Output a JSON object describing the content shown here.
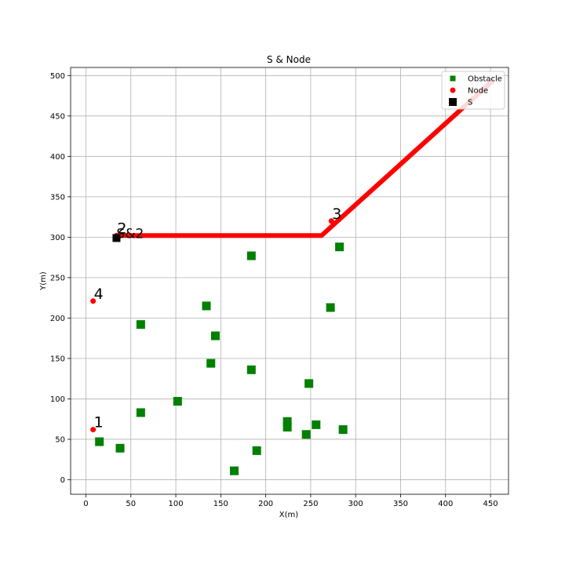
{
  "chart_data": {
    "type": "scatter",
    "title": "S & Node",
    "xlabel": "X(m)",
    "ylabel": "Y(m)",
    "xlim": [
      -17,
      470
    ],
    "ylim": [
      -18,
      510
    ],
    "xticks": [
      0,
      50,
      100,
      150,
      200,
      250,
      300,
      350,
      400,
      450
    ],
    "yticks": [
      0,
      50,
      100,
      150,
      200,
      250,
      300,
      350,
      400,
      450,
      500
    ],
    "grid": true,
    "legend_position": "top-right",
    "series": [
      {
        "name": "Obstacle",
        "marker": "square",
        "color": "#008000",
        "points": [
          {
            "x": 15,
            "y": 47
          },
          {
            "x": 38,
            "y": 39
          },
          {
            "x": 61,
            "y": 83
          },
          {
            "x": 61,
            "y": 192
          },
          {
            "x": 102,
            "y": 97
          },
          {
            "x": 134,
            "y": 215
          },
          {
            "x": 139,
            "y": 144
          },
          {
            "x": 144,
            "y": 178
          },
          {
            "x": 165,
            "y": 11
          },
          {
            "x": 184,
            "y": 277
          },
          {
            "x": 184,
            "y": 136
          },
          {
            "x": 190,
            "y": 36
          },
          {
            "x": 224,
            "y": 72
          },
          {
            "x": 224,
            "y": 65
          },
          {
            "x": 245,
            "y": 56
          },
          {
            "x": 248,
            "y": 119
          },
          {
            "x": 256,
            "y": 68
          },
          {
            "x": 272,
            "y": 213
          },
          {
            "x": 282,
            "y": 288
          },
          {
            "x": 286,
            "y": 62
          }
        ]
      },
      {
        "name": "Node",
        "marker": "circle",
        "color": "#ff0000",
        "points": [
          {
            "x": 8,
            "y": 62,
            "label": "1"
          },
          {
            "x": 34,
            "y": 302,
            "label": "2"
          },
          {
            "x": 273,
            "y": 320,
            "label": "3"
          },
          {
            "x": 8,
            "y": 221,
            "label": "4"
          }
        ]
      },
      {
        "name": "S",
        "marker": "square",
        "color": "#000000",
        "points": [
          {
            "x": 34,
            "y": 299,
            "label": "S&2"
          }
        ]
      }
    ],
    "path": {
      "color": "#ff0000",
      "points": [
        {
          "x": 34,
          "y": 302
        },
        {
          "x": 262,
          "y": 302
        },
        {
          "x": 452,
          "y": 493
        }
      ]
    }
  }
}
